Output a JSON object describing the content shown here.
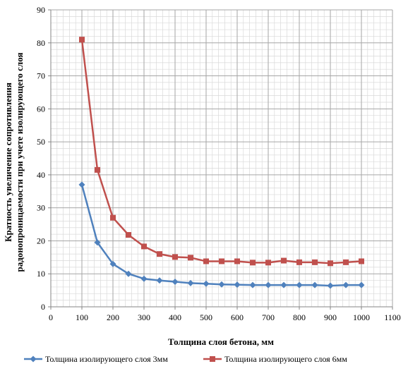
{
  "chart_data": {
    "type": "line",
    "xlabel": "Толщина слоя бетона, мм",
    "ylabel_line1": "Кратность увеличение сопротивления",
    "ylabel_line2": "радонопроницаемости при учете изолирующего слоя",
    "xlim": [
      0,
      1100
    ],
    "ylim": [
      0,
      90
    ],
    "xticks": [
      "0",
      "100",
      "200",
      "300",
      "400",
      "500",
      "600",
      "700",
      "800",
      "900",
      "1000",
      "1100"
    ],
    "yticks": [
      "0",
      "10",
      "20",
      "30",
      "40",
      "50",
      "60",
      "70",
      "80",
      "90"
    ],
    "grid": true,
    "legend_position": "bottom",
    "x": [
      100,
      150,
      200,
      250,
      300,
      350,
      400,
      450,
      500,
      550,
      600,
      650,
      700,
      750,
      800,
      850,
      900,
      950,
      1000
    ],
    "series": [
      {
        "name": "Толщина изолирующего слоя 3мм",
        "color": "#4f81bd",
        "marker": "diamond",
        "values": [
          37,
          19.5,
          13,
          10,
          8.5,
          8,
          7.6,
          7.2,
          7,
          6.8,
          6.7,
          6.6,
          6.6,
          6.6,
          6.6,
          6.6,
          6.4,
          6.6,
          6.6
        ]
      },
      {
        "name": "Толщина изолирующего слоя 6мм",
        "color": "#c0504d",
        "marker": "square",
        "values": [
          81,
          41.5,
          27,
          21.8,
          18.3,
          16,
          15.1,
          14.9,
          13.8,
          13.8,
          13.8,
          13.4,
          13.4,
          14,
          13.5,
          13.5,
          13.2,
          13.5,
          13.8
        ]
      }
    ]
  }
}
